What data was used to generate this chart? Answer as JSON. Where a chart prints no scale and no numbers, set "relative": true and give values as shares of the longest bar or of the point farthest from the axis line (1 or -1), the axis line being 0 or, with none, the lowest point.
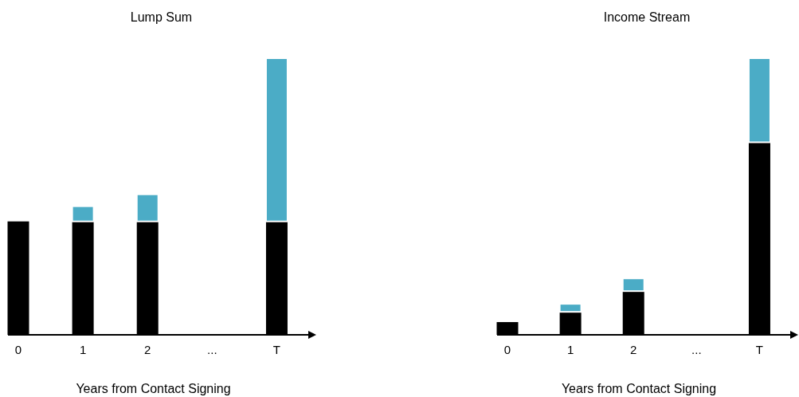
{
  "chart_data": [
    {
      "type": "bar",
      "title": "Lump Sum",
      "xlabel": "Years from Contact Signing",
      "categories": [
        "0",
        "1",
        "2",
        "...",
        "T"
      ],
      "stacked": true,
      "relative": true,
      "series": [
        {
          "color": "#000000",
          "values": [
            0.41,
            0.41,
            0.41,
            null,
            0.41
          ]
        },
        {
          "color": "#4bacc6",
          "values": [
            null,
            0.055,
            0.098,
            null,
            0.59
          ]
        }
      ]
    },
    {
      "type": "bar",
      "title": "Income Stream",
      "xlabel": "Years from Contact Signing",
      "categories": [
        "0",
        "1",
        "2",
        "...",
        "T"
      ],
      "stacked": true,
      "relative": true,
      "series": [
        {
          "color": "#000000",
          "values": [
            0.046,
            0.083,
            0.158,
            null,
            0.696
          ]
        },
        {
          "color": "#4bacc6",
          "values": [
            null,
            0.029,
            0.046,
            null,
            0.304
          ]
        }
      ]
    }
  ]
}
